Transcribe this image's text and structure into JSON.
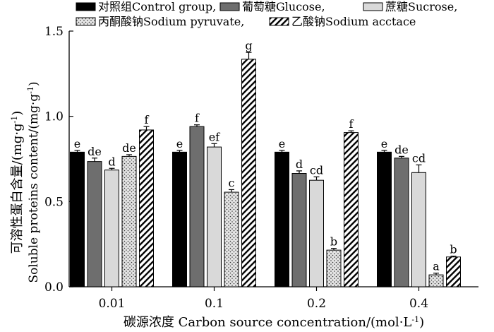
{
  "chart_data": {
    "type": "bar",
    "ylabel_cn": "可溶性蛋白含量",
    "ylabel_en": "Soluble proteins content/(mg·g",
    "ylabel_sup": "-1",
    "ylabel_close": ")",
    "xlabel_cn": "碳源浓度",
    "xlabel_en": "Carbon source concentration/(mol·L",
    "xlabel_sup": "-1",
    "xlabel_close": ")",
    "ylim": [
      0,
      1.5
    ],
    "yticks": [
      0.0,
      0.5,
      1.0,
      1.5
    ],
    "ytick_labels": [
      "0.0",
      "0.5",
      "1.0",
      "1.5"
    ],
    "categories": [
      "0.01",
      "0.1",
      "0.2",
      "0.4"
    ],
    "legend_position": "top",
    "series": [
      {
        "name": "对照组Control group,",
        "fill": "#000000",
        "pattern": "solid",
        "values": [
          0.79,
          0.79,
          0.79,
          0.79
        ],
        "errors": [
          0.01,
          0.01,
          0.01,
          0.01
        ],
        "letters": [
          "e",
          "e",
          "e",
          "e"
        ]
      },
      {
        "name": "葡萄糖Glucose,",
        "fill": "#6e6e6e",
        "pattern": "solid",
        "values": [
          0.735,
          0.94,
          0.665,
          0.755
        ],
        "errors": [
          0.02,
          0.01,
          0.015,
          0.01
        ],
        "letters": [
          "de",
          "f",
          "d",
          "de"
        ]
      },
      {
        "name": "蔗糖Sucrose,",
        "fill": "#d9d9d9",
        "pattern": "solid",
        "values": [
          0.685,
          0.82,
          0.625,
          0.67
        ],
        "errors": [
          0.01,
          0.02,
          0.02,
          0.045
        ],
        "letters": [
          "d",
          "ef",
          "cd",
          "cd"
        ]
      },
      {
        "name": "丙酮酸钠Sodium pyruvate,",
        "fill": "#dcdcdc",
        "pattern": "dots",
        "values": [
          0.765,
          0.555,
          0.215,
          0.07
        ],
        "errors": [
          0.01,
          0.015,
          0.01,
          0.01
        ],
        "letters": [
          "de",
          "c",
          "b",
          "a"
        ]
      },
      {
        "name": "乙酸钠Sodium acctace",
        "fill": "#ffffff",
        "pattern": "hatch",
        "values": [
          0.92,
          1.335,
          0.905,
          0.175
        ],
        "errors": [
          0.02,
          0.04,
          0.01,
          0.005
        ],
        "letters": [
          "f",
          "g",
          "f",
          "b"
        ]
      }
    ]
  }
}
